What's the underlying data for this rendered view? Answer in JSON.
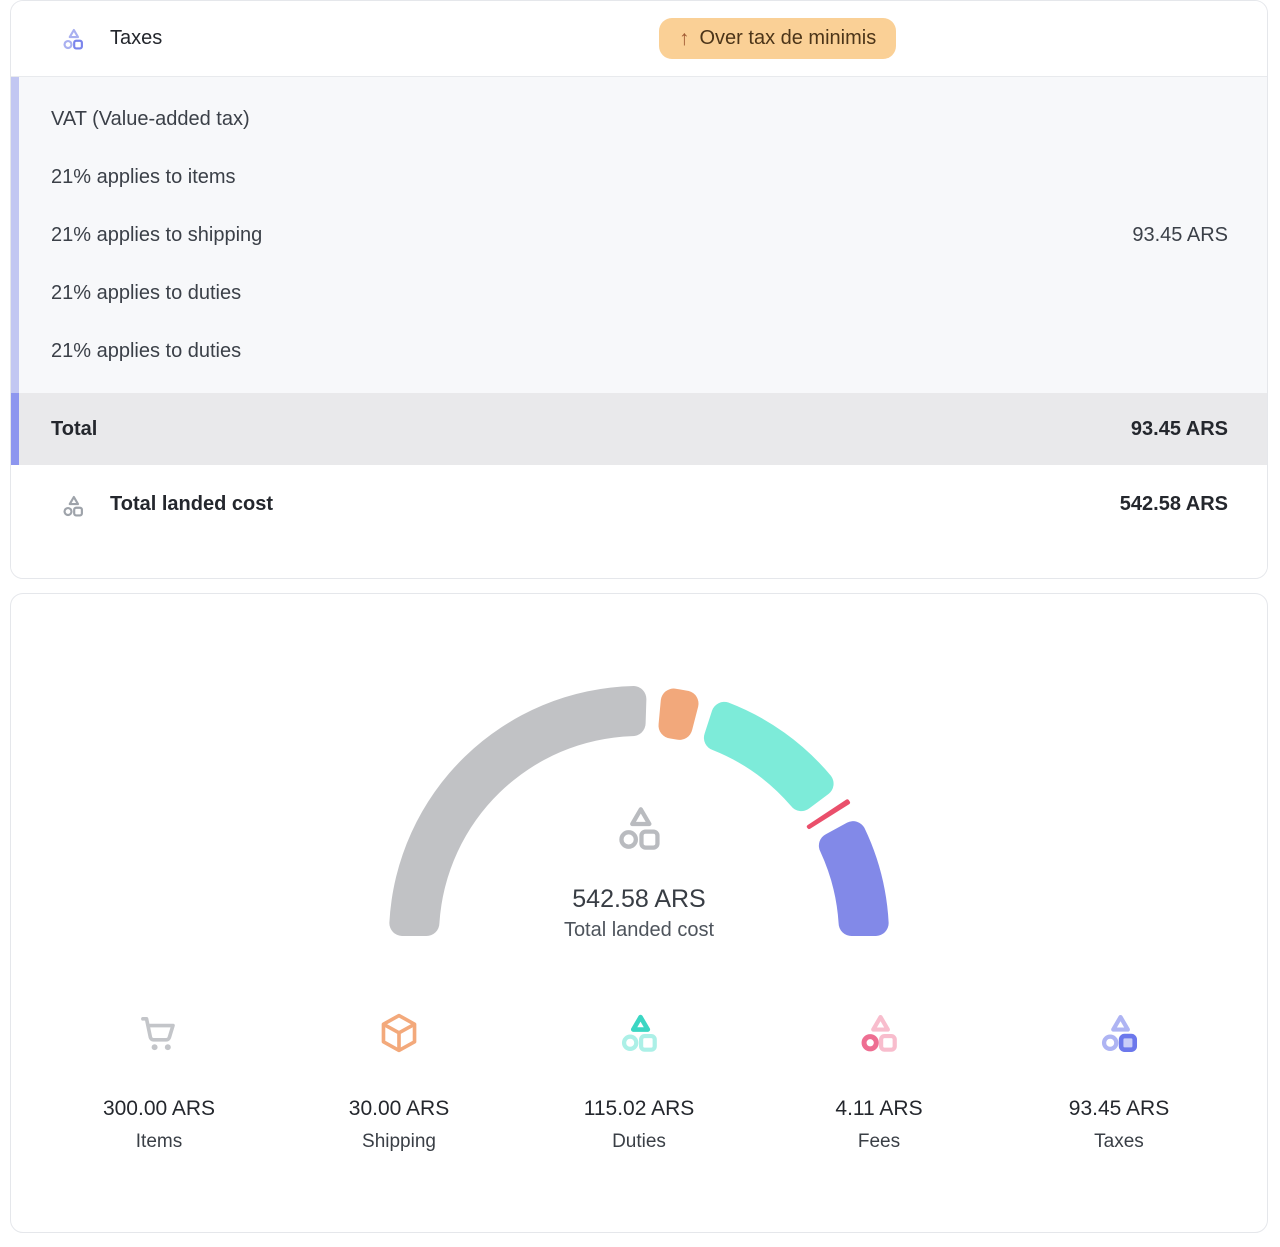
{
  "taxes_card": {
    "title": "Taxes",
    "badge": {
      "arrow_icon": "↑",
      "label": "Over tax de minimis",
      "bg": "#FAD096",
      "text_color": "#4C3519",
      "arrow_color": "#A05A33"
    },
    "breakdown_rows": [
      {
        "label": "VAT (Value-added tax)",
        "value": ""
      },
      {
        "label": "21% applies to items",
        "value": ""
      },
      {
        "label": "21% applies to shipping",
        "value": "93.45 ARS"
      },
      {
        "label": "21% applies to duties",
        "value": ""
      },
      {
        "label": "21% applies to duties",
        "value": ""
      }
    ],
    "total_row": {
      "label": "Total",
      "value": "93.45 ARS"
    },
    "landed_cost_row": {
      "label": "Total landed cost",
      "value": "542.58 ARS"
    },
    "accent_light": "#C2C7F2",
    "accent_dark": "#8D96EF"
  },
  "chart_data": {
    "type": "pie",
    "variant": "half-donut-gauge",
    "categories": [
      "Items",
      "Shipping",
      "Duties",
      "Fees",
      "Taxes"
    ],
    "values": [
      300.0,
      30.0,
      115.02,
      4.11,
      93.45
    ],
    "display_values": [
      "300.00 ARS",
      "30.00 ARS",
      "115.02 ARS",
      "4.11 ARS",
      "93.45 ARS"
    ],
    "colors": [
      "#C1C2C5",
      "#F2A87B",
      "#7DEBD9",
      "#EA4F6B",
      "#8289E8"
    ],
    "total": 542.58,
    "currency": "ARS",
    "center_value": "542.58 ARS",
    "center_label": "Total landed cost",
    "arc_span_deg": 180,
    "pad_deg": 3.5,
    "legend_position": "bottom"
  }
}
